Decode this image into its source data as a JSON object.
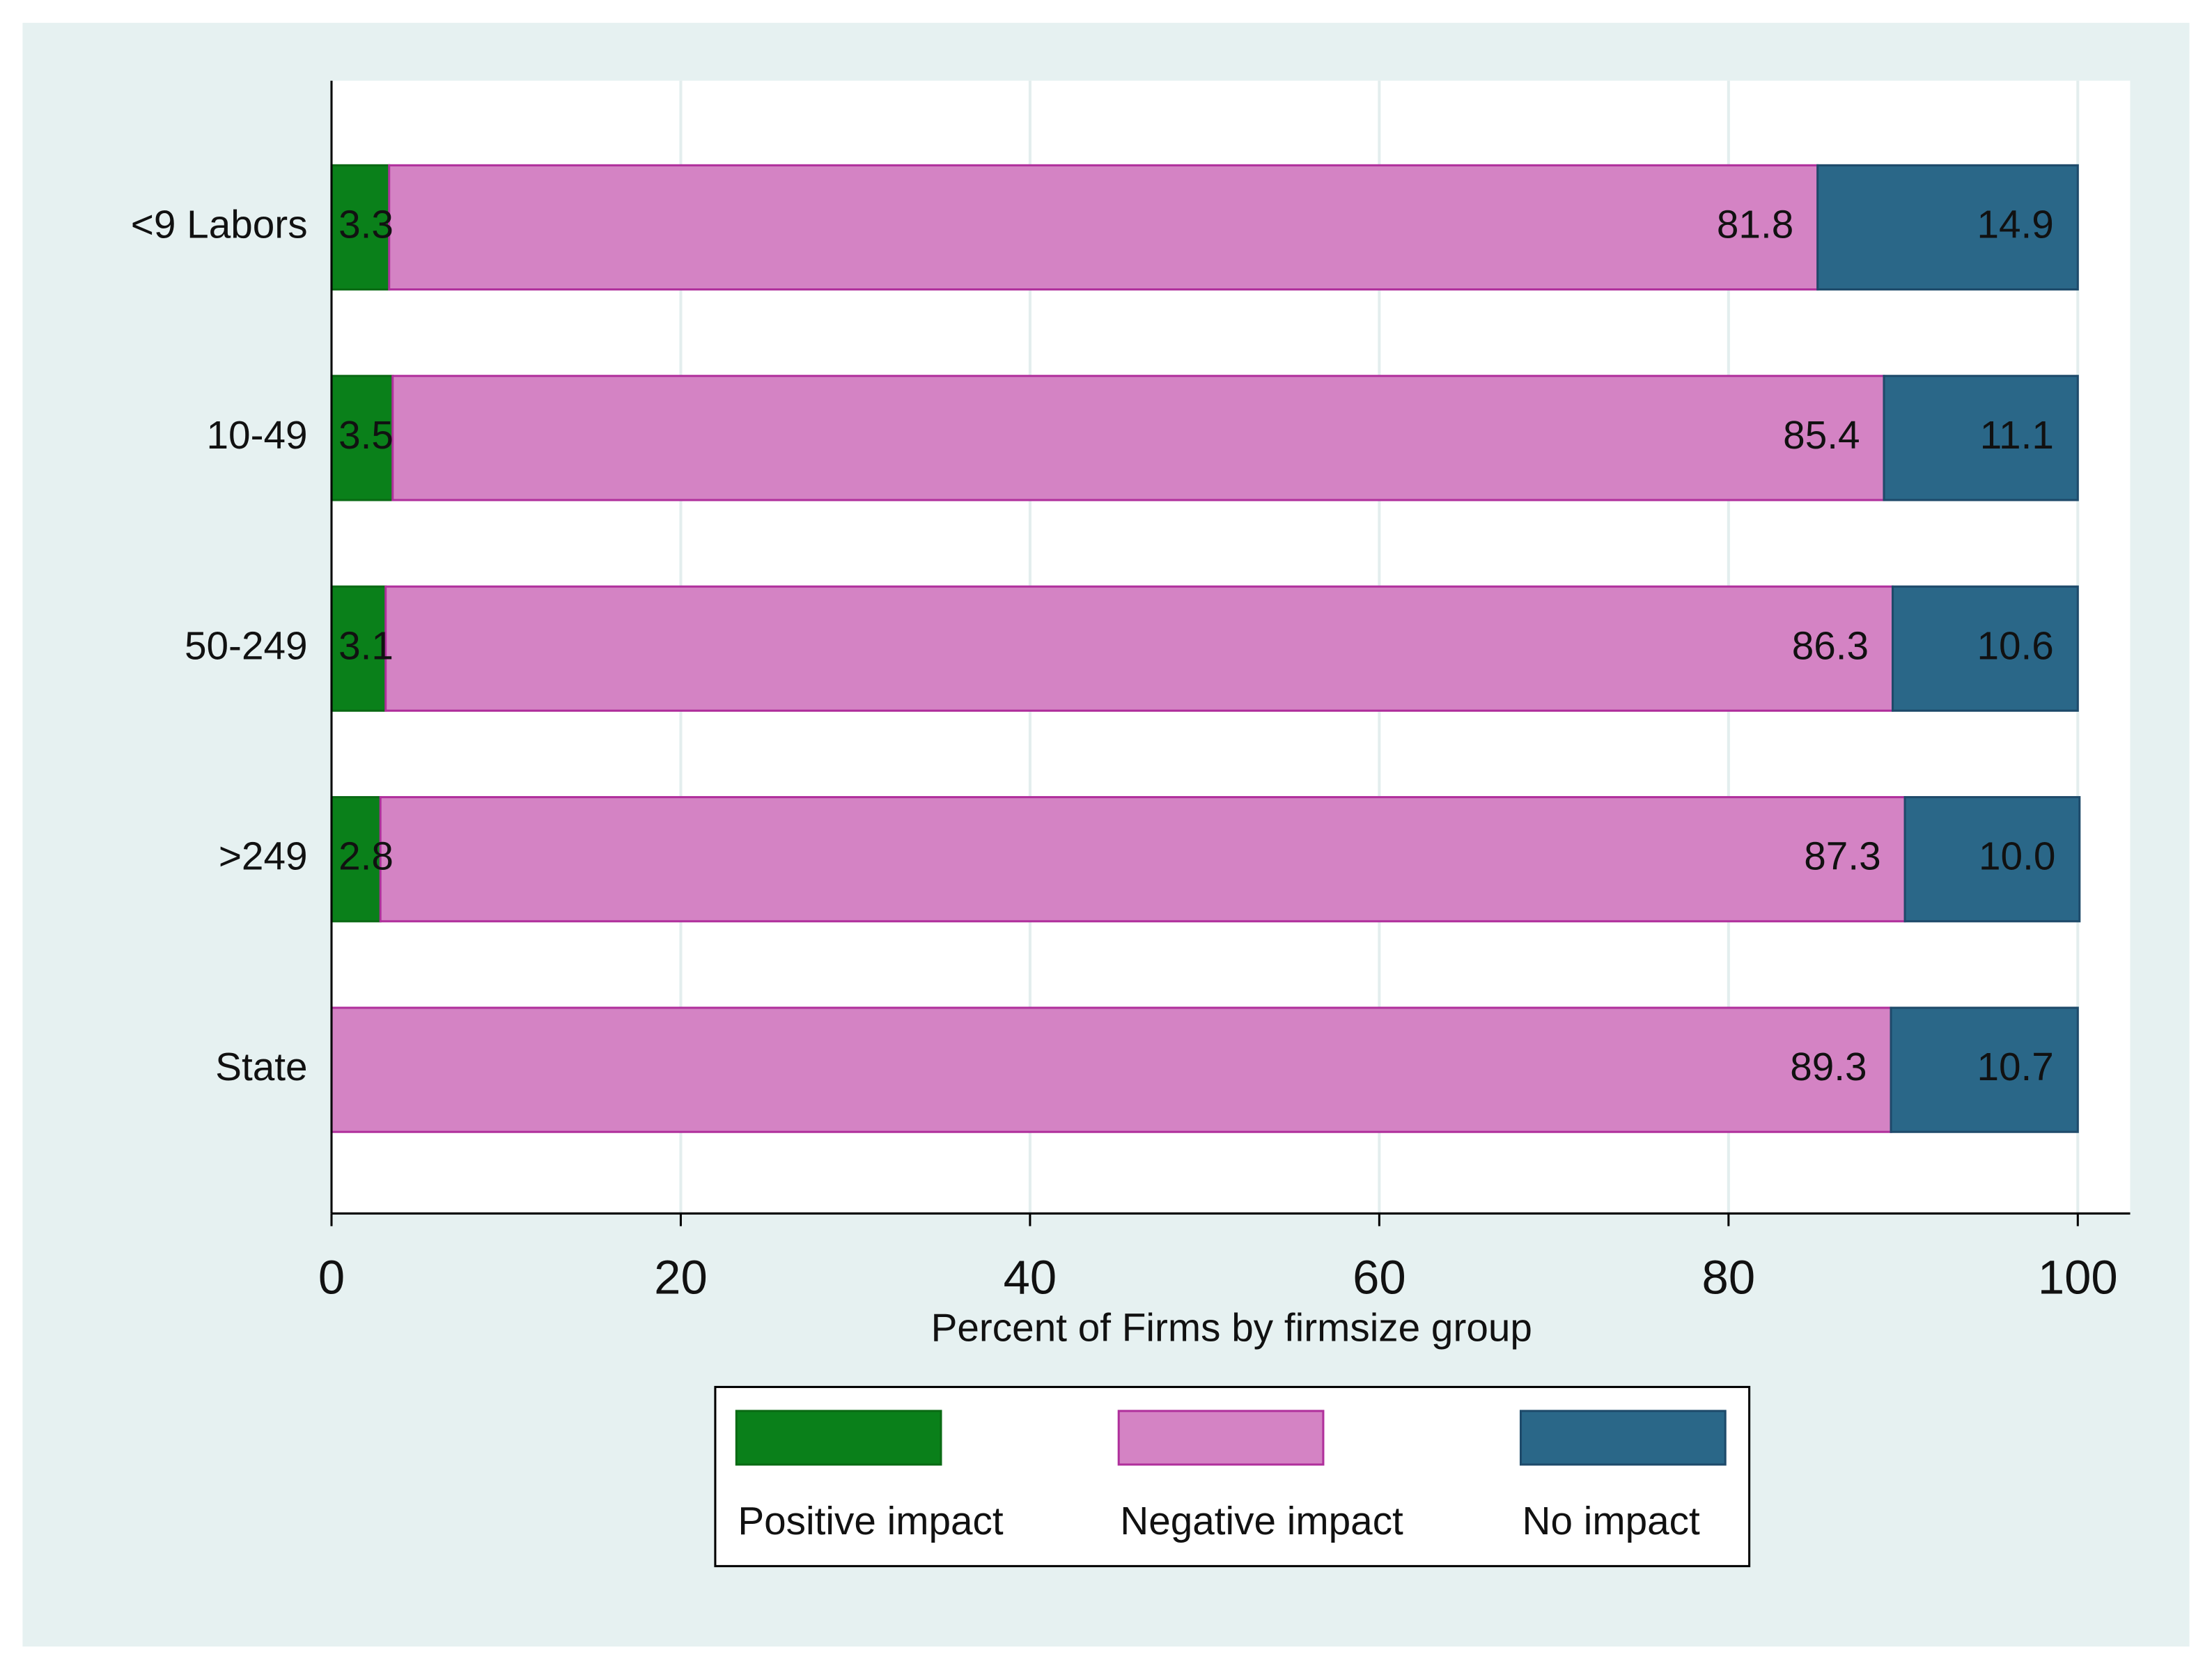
{
  "chart_data": {
    "type": "bar",
    "orientation": "horizontal",
    "stacked": true,
    "categories": [
      "<9 Labors",
      "10-49",
      "50-249",
      ">249",
      "State"
    ],
    "series": [
      {
        "name": "Positive impact",
        "color": "#0a801a",
        "values": [
          3.3,
          3.5,
          3.1,
          2.8,
          null
        ]
      },
      {
        "name": "Negative impact",
        "color": "#d483c4",
        "values": [
          81.8,
          85.4,
          86.3,
          87.3,
          89.3
        ]
      },
      {
        "name": "No impact",
        "color": "#2a6788",
        "values": [
          14.9,
          11.1,
          10.6,
          10.0,
          10.7
        ],
        "value_labels": [
          "14.9",
          "11.1",
          "10.6",
          "10.0",
          "10.7"
        ]
      }
    ],
    "xlabel": "Percent of Firms by firmsize group",
    "xlim": [
      0,
      103
    ],
    "xticks": [
      0,
      20,
      40,
      60,
      80,
      100
    ],
    "grid": true,
    "legend": "bottom"
  }
}
